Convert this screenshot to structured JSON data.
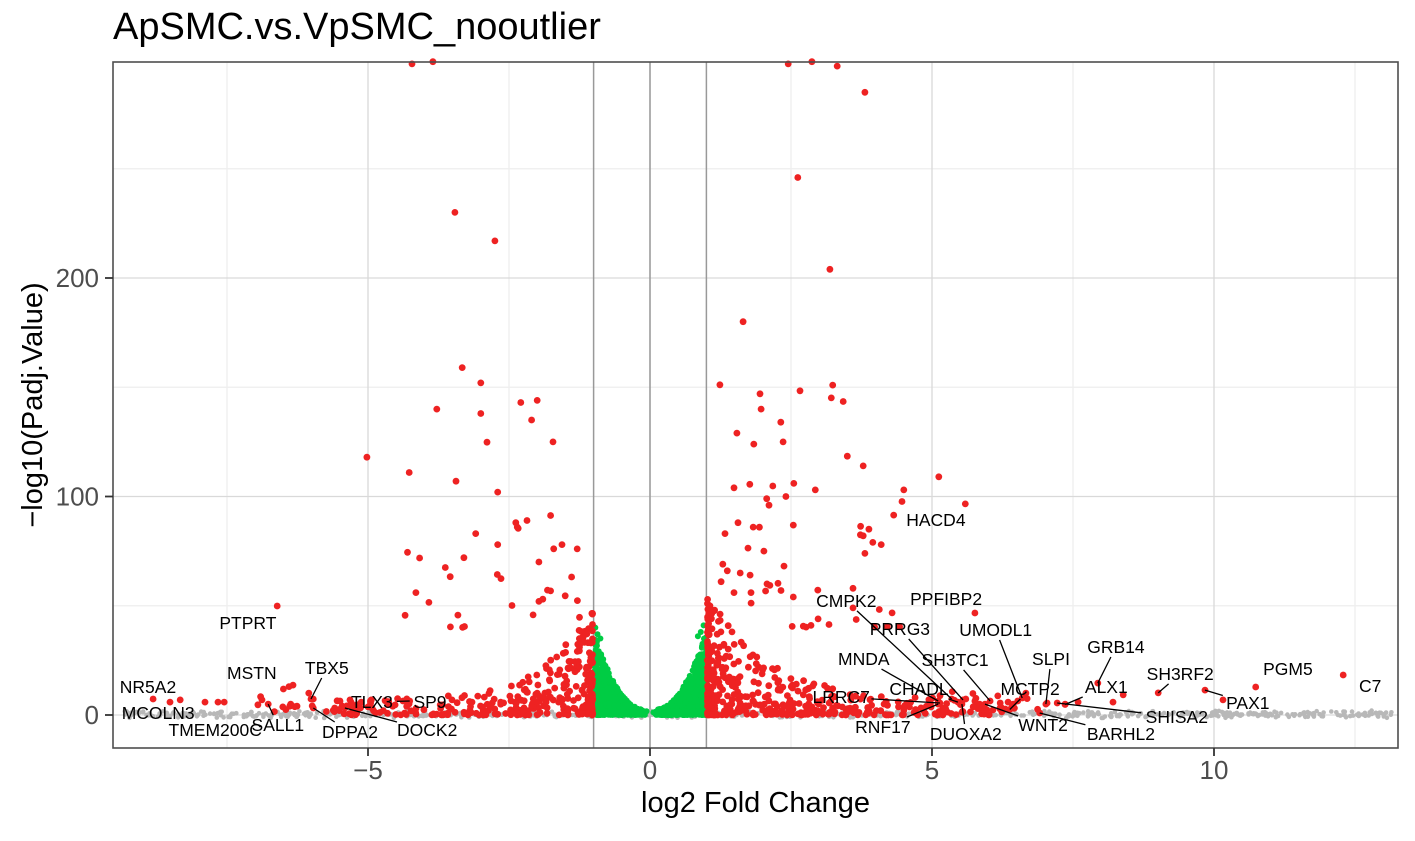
{
  "title": "ApSMC.vs.VpSMC_nooutlier",
  "chart_data": {
    "type": "scatter",
    "subtype": "volcano",
    "title": "ApSMC.vs.VpSMC_nooutlier",
    "xlabel": "log2 Fold Change",
    "ylabel": "−log10(Padj.Value)",
    "xlim": [
      -9.52,
      13.26
    ],
    "ylim": [
      -15.1,
      299
    ],
    "x_ticks": [
      -5,
      0,
      5,
      10
    ],
    "x_tick_labels": [
      "−5",
      "0",
      "5",
      "10"
    ],
    "y_ticks": [
      0,
      100,
      200
    ],
    "y_tick_labels": [
      "0",
      "100",
      "200"
    ],
    "x_minor_ticks": [
      -7.5,
      -2.5,
      2.5,
      7.5,
      12.5
    ],
    "y_minor_ticks": [
      50,
      150,
      250
    ],
    "grid": true,
    "legend": false,
    "threshold_vlines": [
      -1,
      0,
      1
    ],
    "colors": {
      "significant": "#ee2222",
      "nonsignificant_center": "#00cc44",
      "baseline_band": "#b8b8b8",
      "grid_major": "#d9d9d9",
      "grid_minor": "#eeeeee",
      "vline": "#999999",
      "panel_border": "#4e4e4e",
      "tick_text": "#4d4d4d",
      "tick_mark": "#333333",
      "label_text": "#000000"
    },
    "labeled_genes": [
      {
        "name": "HACD4",
        "x": 5.59,
        "y": 96.6,
        "lx": 5.07,
        "ly": 89.2,
        "leader": false
      },
      {
        "name": "CMPK2",
        "x": 5.35,
        "y": 7.3,
        "lx": 3.48,
        "ly": 52.2,
        "leader": true
      },
      {
        "name": "PPFIBP2",
        "x": 5.76,
        "y": 46.7,
        "lx": 5.25,
        "ly": 53.1,
        "leader": false
      },
      {
        "name": "PRRG3",
        "x": 5.55,
        "y": 6.9,
        "lx": 4.43,
        "ly": 39.4,
        "leader": true
      },
      {
        "name": "UMODL1",
        "x": 6.6,
        "y": 7.8,
        "lx": 6.13,
        "ly": 38.9,
        "leader": true
      },
      {
        "name": "SLPI",
        "x": 7.02,
        "y": 5.0,
        "lx": 7.11,
        "ly": 25.6,
        "leader": true
      },
      {
        "name": "GRB14",
        "x": 7.94,
        "y": 14.6,
        "lx": 8.26,
        "ly": 31.1,
        "leader": true
      },
      {
        "name": "MNDA",
        "x": 5.11,
        "y": 6.4,
        "lx": 3.79,
        "ly": 25.6,
        "leader": true
      },
      {
        "name": "SH3TC1",
        "x": 6.03,
        "y": 6.4,
        "lx": 5.41,
        "ly": 25.2,
        "leader": true
      },
      {
        "name": "MCTP2",
        "x": 6.38,
        "y": 2.5,
        "lx": 6.74,
        "ly": 11.9,
        "leader": true
      },
      {
        "name": "ALX1",
        "x": 7.36,
        "y": 4.8,
        "lx": 8.09,
        "ly": 12.8,
        "leader": true
      },
      {
        "name": "SH3RF2",
        "x": 9.01,
        "y": 10.1,
        "lx": 9.4,
        "ly": 18.8,
        "leader": true
      },
      {
        "name": "SHISA2",
        "x": 7.22,
        "y": 5.5,
        "lx": 9.34,
        "ly": -0.9,
        "leader": true
      },
      {
        "name": "PAX1",
        "x": 9.84,
        "y": 11.4,
        "lx": 10.6,
        "ly": 5.5,
        "leader": true
      },
      {
        "name": "PGM5",
        "x": 10.74,
        "y": 12.8,
        "lx": 11.31,
        "ly": 21.1,
        "leader": false
      },
      {
        "name": "C7",
        "x": 12.29,
        "y": 18.3,
        "lx": 12.77,
        "ly": 13.3,
        "leader": false
      },
      {
        "name": "WNT2",
        "x": 5.94,
        "y": 5.0,
        "lx": 6.97,
        "ly": -4.6,
        "leader": true
      },
      {
        "name": "BARHL2",
        "x": 6.91,
        "y": 0.9,
        "lx": 8.35,
        "ly": -8.7,
        "leader": true
      },
      {
        "name": "RNF17",
        "x": 5.11,
        "y": 5.0,
        "lx": 4.13,
        "ly": -5.5,
        "leader": true
      },
      {
        "name": "DUOXA2",
        "x": 5.53,
        "y": 5.0,
        "lx": 5.6,
        "ly": -8.7,
        "leader": true
      },
      {
        "name": "CHADL",
        "x": 5.46,
        "y": 5.9,
        "lx": 4.77,
        "ly": 11.9,
        "leader": true
      },
      {
        "name": "LRRC7",
        "x": 5.14,
        "y": 5.5,
        "lx": 3.39,
        "ly": 8.2,
        "leader": true
      },
      {
        "name": "PTPRT",
        "x": -6.61,
        "y": 49.9,
        "lx": -7.13,
        "ly": 42.1,
        "leader": false
      },
      {
        "name": "NR5A2",
        "x": -8.51,
        "y": 5.9,
        "lx": -8.9,
        "ly": 12.8,
        "leader": false
      },
      {
        "name": "MSTN",
        "x": -6.4,
        "y": 13.0,
        "lx": -7.06,
        "ly": 19.2,
        "leader": false
      },
      {
        "name": "TBX5",
        "x": -6.01,
        "y": 7.3,
        "lx": -5.73,
        "ly": 21.5,
        "leader": true
      },
      {
        "name": "TLX3",
        "x": -4.26,
        "y": 6.4,
        "lx": -4.93,
        "ly": 5.9,
        "leader": true
      },
      {
        "name": "SP9",
        "x": -3.51,
        "y": 6.9,
        "lx": -3.9,
        "ly": 5.9,
        "leader": false
      },
      {
        "name": "MCOLN3",
        "x": null,
        "y": null,
        "lx": -8.72,
        "ly": 0.9,
        "leader": false
      },
      {
        "name": "TMEM200C",
        "x": null,
        "y": null,
        "lx": -7.71,
        "ly": -6.9,
        "leader": false
      },
      {
        "name": "SALL1",
        "x": -6.77,
        "y": 5.0,
        "lx": -6.6,
        "ly": -4.6,
        "leader": true
      },
      {
        "name": "DPPA2",
        "x": -5.97,
        "y": 3.2,
        "lx": -5.32,
        "ly": -7.8,
        "leader": true
      },
      {
        "name": "DOCK2",
        "x": -5.41,
        "y": 3.2,
        "lx": -3.95,
        "ly": -6.9,
        "leader": true
      }
    ],
    "feature_points_red": [
      [
        -4.22,
        298
      ],
      [
        -3.85,
        299
      ],
      [
        2.45,
        298
      ],
      [
        2.87,
        299
      ],
      [
        3.32,
        297
      ],
      [
        3.81,
        285
      ],
      [
        2.62,
        246
      ],
      [
        -3.46,
        230
      ],
      [
        -2.75,
        217
      ],
      [
        3.19,
        204
      ],
      [
        1.65,
        180
      ],
      [
        -3.33,
        159
      ],
      [
        -3.0,
        152
      ],
      [
        3.24,
        151
      ],
      [
        1.95,
        147
      ],
      [
        -2.0,
        144
      ],
      [
        -2.29,
        143
      ],
      [
        -3.78,
        140
      ],
      [
        1.97,
        140
      ],
      [
        -3.0,
        138
      ],
      [
        -2.1,
        135
      ],
      [
        2.32,
        134
      ],
      [
        1.54,
        129
      ],
      [
        -1.72,
        125
      ],
      [
        2.36,
        125
      ],
      [
        1.84,
        124
      ],
      [
        -5.02,
        118
      ],
      [
        3.78,
        114
      ],
      [
        -4.27,
        111
      ],
      [
        5.12,
        109
      ],
      [
        -3.44,
        107
      ],
      [
        2.55,
        106
      ],
      [
        1.49,
        104
      ],
      [
        4.5,
        103
      ],
      [
        2.93,
        103
      ],
      [
        -2.7,
        102
      ],
      [
        2.41,
        100
      ],
      [
        2.07,
        99
      ],
      [
        2.11,
        96
      ],
      [
        -2.38,
        88
      ],
      [
        -2.18,
        89
      ],
      [
        1.56,
        88
      ],
      [
        1.83,
        86
      ],
      [
        -3.09,
        83
      ],
      [
        1.33,
        83
      ],
      [
        3.78,
        82
      ],
      [
        3.95,
        79
      ],
      [
        4.1,
        78
      ],
      [
        -2.7,
        78
      ],
      [
        -1.56,
        78
      ],
      [
        -1.29,
        76
      ],
      [
        2.02,
        75
      ],
      [
        -3.3,
        72
      ],
      [
        -1.97,
        70
      ],
      [
        1.29,
        69
      ],
      [
        1.37,
        66
      ],
      [
        1.6,
        65
      ],
      [
        1.26,
        61
      ],
      [
        3.6,
        58
      ],
      [
        -4.15,
        56
      ],
      [
        1.49,
        56
      ],
      [
        1.79,
        56
      ],
      [
        2.54,
        54
      ],
      [
        -1.9,
        53
      ],
      [
        3.6,
        49
      ],
      [
        2.98,
        44
      ],
      [
        -8.81,
        7.3
      ],
      [
        -8.33,
        6.9
      ],
      [
        -7.89,
        5.9
      ],
      [
        -7.66,
        5.9
      ],
      [
        -7.55,
        5.9
      ],
      [
        -6.88,
        6.9
      ],
      [
        -6.51,
        3.7
      ],
      [
        -6.37,
        5.0
      ],
      [
        -5.97,
        7.3
      ],
      [
        -5.59,
        3.2
      ],
      [
        -5.32,
        6.9
      ],
      [
        -5.12,
        5.9
      ],
      [
        -5.0,
        3.7
      ],
      [
        -4.65,
        5.9
      ],
      [
        -4.52,
        4.6
      ],
      [
        -4.38,
        6.4
      ],
      [
        -3.72,
        4.6
      ],
      [
        -6.5,
        11.9
      ],
      [
        -6.33,
        13.7
      ],
      [
        -6.05,
        10.0
      ],
      [
        5.6,
        7.3
      ],
      [
        5.76,
        6.4
      ],
      [
        5.9,
        3.7
      ],
      [
        6.08,
        2.3
      ],
      [
        6.21,
        5.5
      ],
      [
        6.35,
        5.9
      ],
      [
        6.44,
        5.0
      ],
      [
        6.52,
        6.4
      ],
      [
        6.42,
        3.7
      ],
      [
        7.04,
        5.5
      ],
      [
        7.36,
        5.0
      ],
      [
        7.59,
        5.9
      ],
      [
        8.21,
        5.9
      ],
      [
        8.39,
        9.2
      ],
      [
        10.16,
        6.9
      ],
      [
        4.7,
        8
      ],
      [
        4.4,
        6
      ],
      [
        4.9,
        4
      ],
      [
        4.15,
        5
      ],
      [
        3.9,
        7
      ]
    ],
    "feature_points_green": [
      [
        -0.97,
        40
      ],
      [
        -0.93,
        37
      ],
      [
        0.95,
        41
      ],
      [
        0.9,
        38
      ],
      [
        0.85,
        36
      ],
      [
        -0.88,
        35
      ]
    ],
    "generated": {
      "seed": 42,
      "green_wedge": {
        "n_per_side": 620,
        "x_min": 0.08,
        "x_span": 0.92,
        "x_pow": 0.65,
        "env_base": 2.5,
        "env_amp": 36,
        "env_pow": 2.1,
        "y_pow": 1.5
      },
      "green_base": {
        "n_per_side": 70,
        "y_max": 2.0
      },
      "red_low_right": {
        "n": 430,
        "x0": 1.02,
        "x_amp": 5.3,
        "x_pow": 2.6,
        "env_base": 6,
        "env_amp": 48,
        "env_decay": 1.15,
        "y_pow": 1.8
      },
      "red_low_left": {
        "n": 340,
        "x0": -1.02,
        "x_amp": 4.6,
        "x_pow": 2.8,
        "env_base": 6,
        "env_amp": 42,
        "env_decay": 1.05,
        "y_pow": 1.8
      },
      "red_mid_right": {
        "n": 38,
        "x0": 1.2,
        "x_amp": 3.4,
        "y0": 40,
        "y_amp": 115,
        "y_pow": 2.0
      },
      "red_mid_left": {
        "n": 26,
        "x0": -1.2,
        "x_amp": -3.2,
        "y0": 40,
        "y_amp": 95,
        "y_pow": 2.2
      },
      "red_tail_right": {
        "n": 14,
        "x0": 5.0,
        "x_amp": 3.0,
        "x_pow": 1.5,
        "y0": 1.5,
        "y_amp": 10
      },
      "red_tail_left": {
        "n": 10,
        "x0": -5.2,
        "x_amp": -2.2,
        "y0": 1.5,
        "y_amp": 8
      },
      "gray_band": {
        "n": 800,
        "x_min": -9.35,
        "x_span": 22.5,
        "y_center": 0.3,
        "y_spread": 1.8
      }
    }
  }
}
